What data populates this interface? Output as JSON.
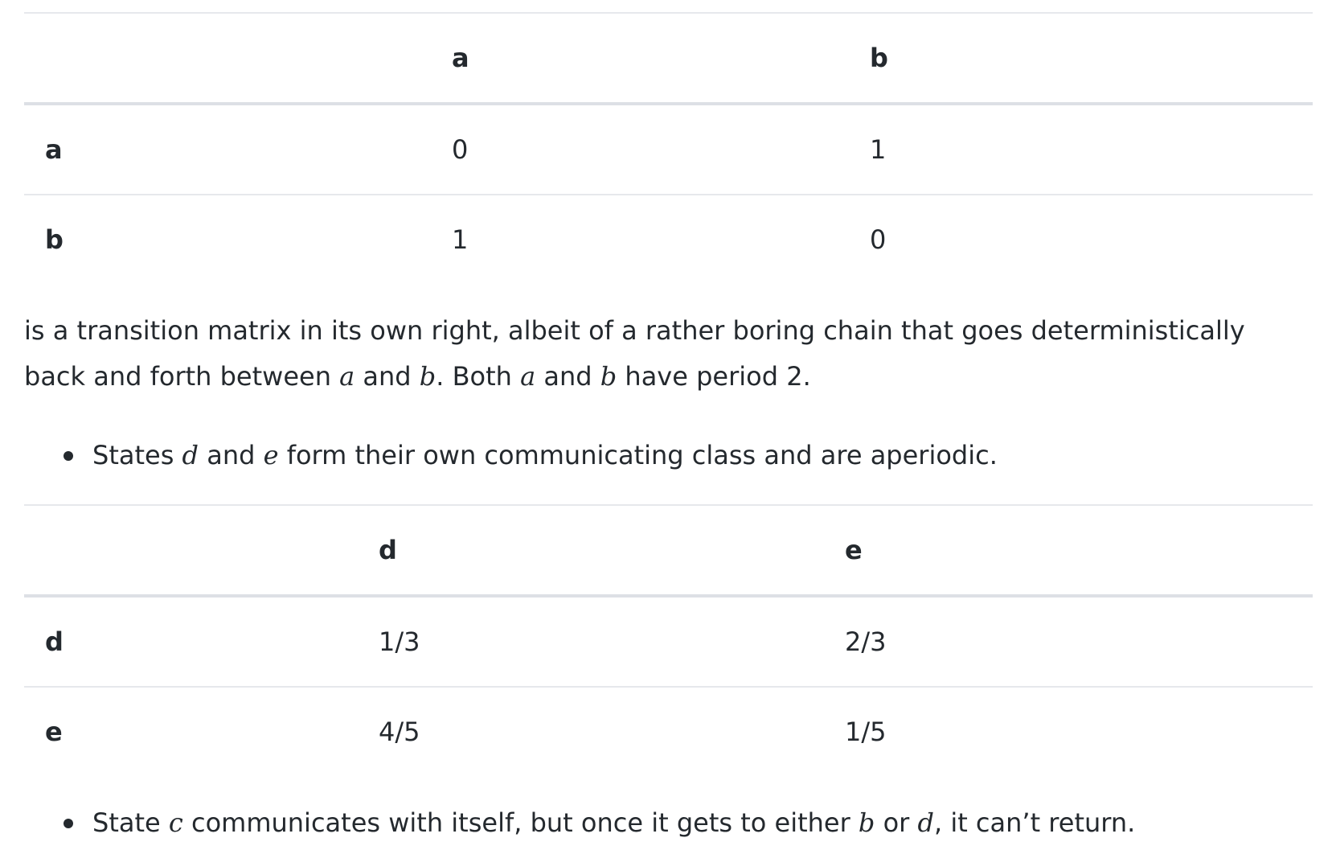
{
  "table1": {
    "corner": "",
    "col_headers": [
      "a",
      "b"
    ],
    "rows": [
      {
        "label": "a",
        "cells": [
          "0",
          "1"
        ]
      },
      {
        "label": "b",
        "cells": [
          "1",
          "0"
        ]
      }
    ]
  },
  "paragraph1": {
    "part1": "is a transition matrix in its own right, albeit of a rather boring chain that goes deterministically back and forth between ",
    "var1": "a",
    "part2": " and ",
    "var2": "b",
    "part3": ". Both ",
    "var3": "a",
    "part4": " and ",
    "var4": "b",
    "part5": " have period 2."
  },
  "bullet1": {
    "part1": "States ",
    "var1": "d",
    "part2": " and ",
    "var2": "e",
    "part3": " form their own communicating class and are aperiodic."
  },
  "table2": {
    "corner": "",
    "col_headers": [
      "d",
      "e"
    ],
    "rows": [
      {
        "label": "d",
        "cells": [
          "1/3",
          "2/3"
        ]
      },
      {
        "label": "e",
        "cells": [
          "4/5",
          "1/5"
        ]
      }
    ]
  },
  "bullet2": {
    "part1": "State ",
    "var1": "c",
    "part2": " communicates with itself, but once it gets to either ",
    "var2": "b",
    "part3": " or ",
    "var3": "d",
    "part4": ", it can’t return."
  }
}
